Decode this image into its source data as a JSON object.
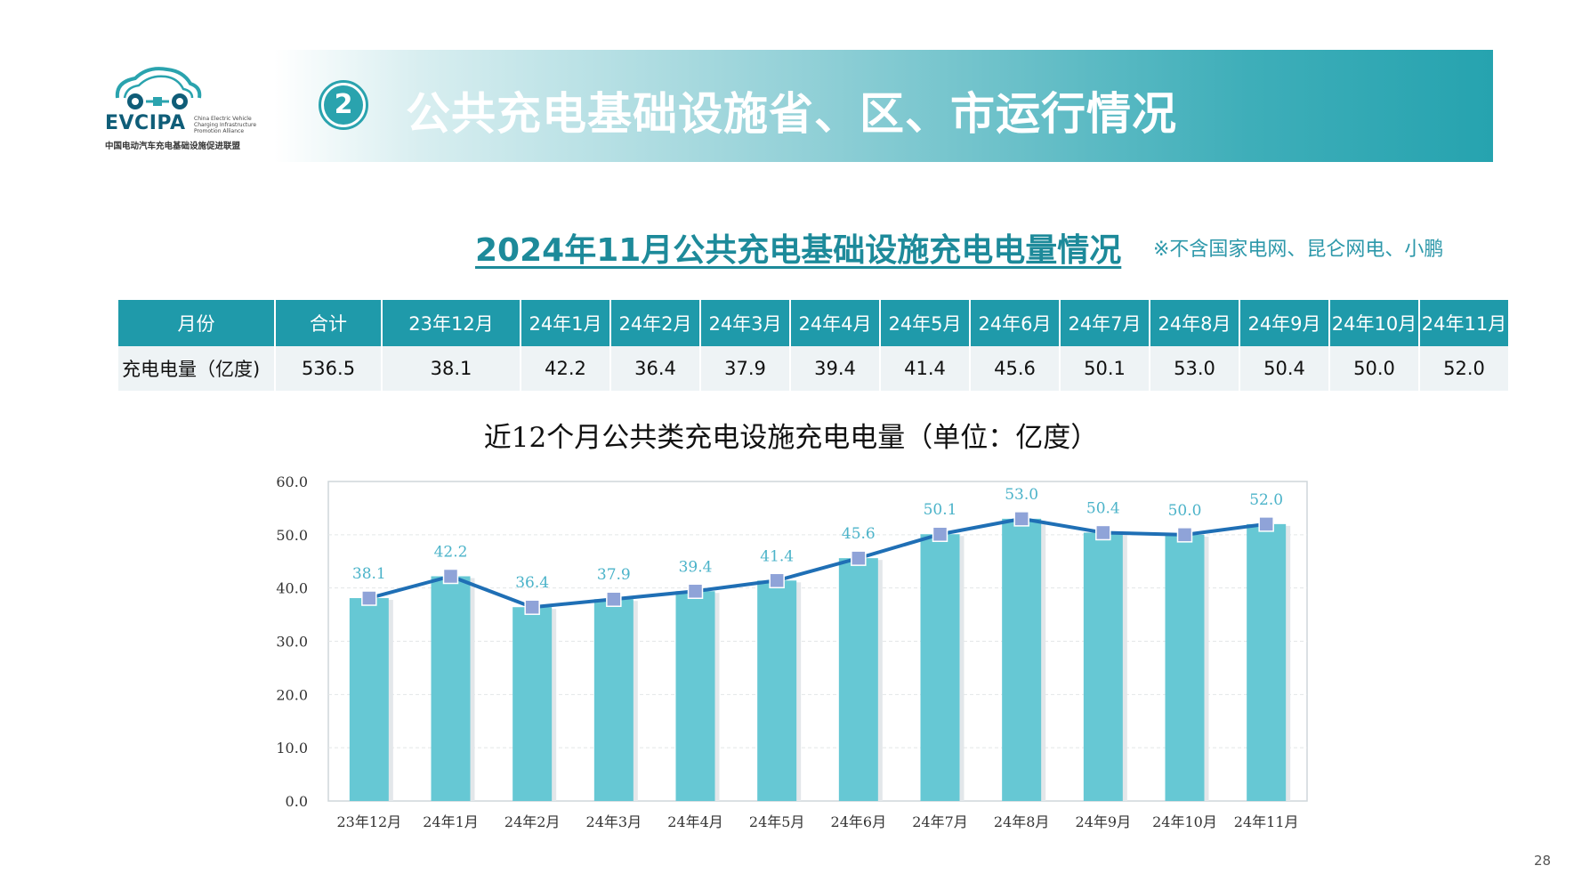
{
  "logo": {
    "name": "EVCIPA",
    "english_lines": "China Electric Vehicle\nCharging Infrastructure\nPromotion Alliance",
    "chinese_name": "中国电动汽车充电基础设施促进联盟"
  },
  "header": {
    "number": "2",
    "title": "公共充电基础设施省、区、市运行情况"
  },
  "subtitle": "2024年11月公共充电基础设施充电电量情况",
  "note": "※不含国家电网、昆仑网电、小鹏",
  "table": {
    "headers": [
      "月份",
      "合计",
      "23年12月",
      "24年1月",
      "24年2月",
      "24年3月",
      "24年4月",
      "24年5月",
      "24年6月",
      "24年7月",
      "24年8月",
      "24年9月",
      "24年10月",
      "24年11月"
    ],
    "row": [
      "充电电量（亿度)",
      "536.5",
      "38.1",
      "42.2",
      "36.4",
      "37.9",
      "39.4",
      "41.4",
      "45.6",
      "50.1",
      "53.0",
      "50.4",
      "50.0",
      "52.0"
    ]
  },
  "chart_data": {
    "type": "bar",
    "title": "近12个月公共类充电设施充电电量（单位：亿度）",
    "categories": [
      "23年12月",
      "24年1月",
      "24年2月",
      "24年3月",
      "24年4月",
      "24年5月",
      "24年6月",
      "24年7月",
      "24年8月",
      "24年9月",
      "24年10月",
      "24年11月"
    ],
    "series": [
      {
        "type": "bar",
        "values": [
          38.1,
          42.2,
          36.4,
          37.9,
          39.4,
          41.4,
          45.6,
          50.1,
          53.0,
          50.4,
          50.0,
          52.0
        ]
      },
      {
        "type": "line",
        "values": [
          38.1,
          42.2,
          36.4,
          37.9,
          39.4,
          41.4,
          45.6,
          50.1,
          53.0,
          50.4,
          50.0,
          52.0
        ]
      }
    ],
    "data_labels": [
      "38.1",
      "42.2",
      "36.4",
      "37.9",
      "39.4",
      "41.4",
      "45.6",
      "50.1",
      "53.0",
      "50.4",
      "50.0",
      "52.0"
    ],
    "y_ticks": [
      "0.0",
      "10.0",
      "20.0",
      "30.0",
      "40.0",
      "50.0",
      "60.0"
    ],
    "ylim": [
      0,
      60
    ],
    "grid": true,
    "colors": {
      "bar": "#66c8d4",
      "line": "#1f6fb5",
      "marker": "#8fa3d8",
      "label": "#4bb3c9"
    }
  },
  "page_number": "28"
}
